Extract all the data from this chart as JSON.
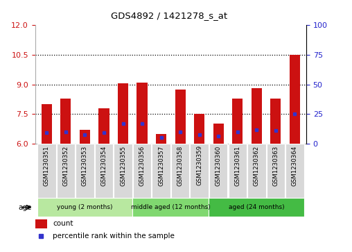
{
  "title": "GDS4892 / 1421278_s_at",
  "samples": [
    "GSM1230351",
    "GSM1230352",
    "GSM1230353",
    "GSM1230354",
    "GSM1230355",
    "GSM1230356",
    "GSM1230357",
    "GSM1230358",
    "GSM1230359",
    "GSM1230360",
    "GSM1230361",
    "GSM1230362",
    "GSM1230363",
    "GSM1230364"
  ],
  "bar_values": [
    8.0,
    8.3,
    6.7,
    7.8,
    9.05,
    9.1,
    6.5,
    8.75,
    7.5,
    7.0,
    8.3,
    8.8,
    8.3,
    10.5
  ],
  "blue_dot_values": [
    6.55,
    6.6,
    6.45,
    6.55,
    7.0,
    7.0,
    6.3,
    6.6,
    6.45,
    6.4,
    6.6,
    6.7,
    6.65,
    7.5
  ],
  "bar_bottom": 6.0,
  "ylim_left": [
    6.0,
    12.0
  ],
  "ylim_right": [
    0,
    100
  ],
  "yticks_left": [
    6,
    7.5,
    9,
    10.5,
    12
  ],
  "yticks_right": [
    0,
    25,
    50,
    75,
    100
  ],
  "groups": [
    {
      "label": "young (2 months)",
      "start": 0,
      "end": 4,
      "color": "#b8e8a0"
    },
    {
      "label": "middle aged (12 months)",
      "start": 5,
      "end": 8,
      "color": "#80d870"
    },
    {
      "label": "aged (24 months)",
      "start": 9,
      "end": 13,
      "color": "#44bb44"
    }
  ],
  "group_label": "age",
  "bar_color": "#cc1111",
  "blue_dot_color": "#3333cc",
  "bar_width": 0.55,
  "background_color": "#ffffff",
  "tick_label_color_left": "#cc1111",
  "tick_label_color_right": "#2222cc",
  "legend_items": [
    "count",
    "percentile rank within the sample"
  ],
  "sample_box_color": "#d8d8d8",
  "xlim": [
    -0.6,
    13.6
  ]
}
